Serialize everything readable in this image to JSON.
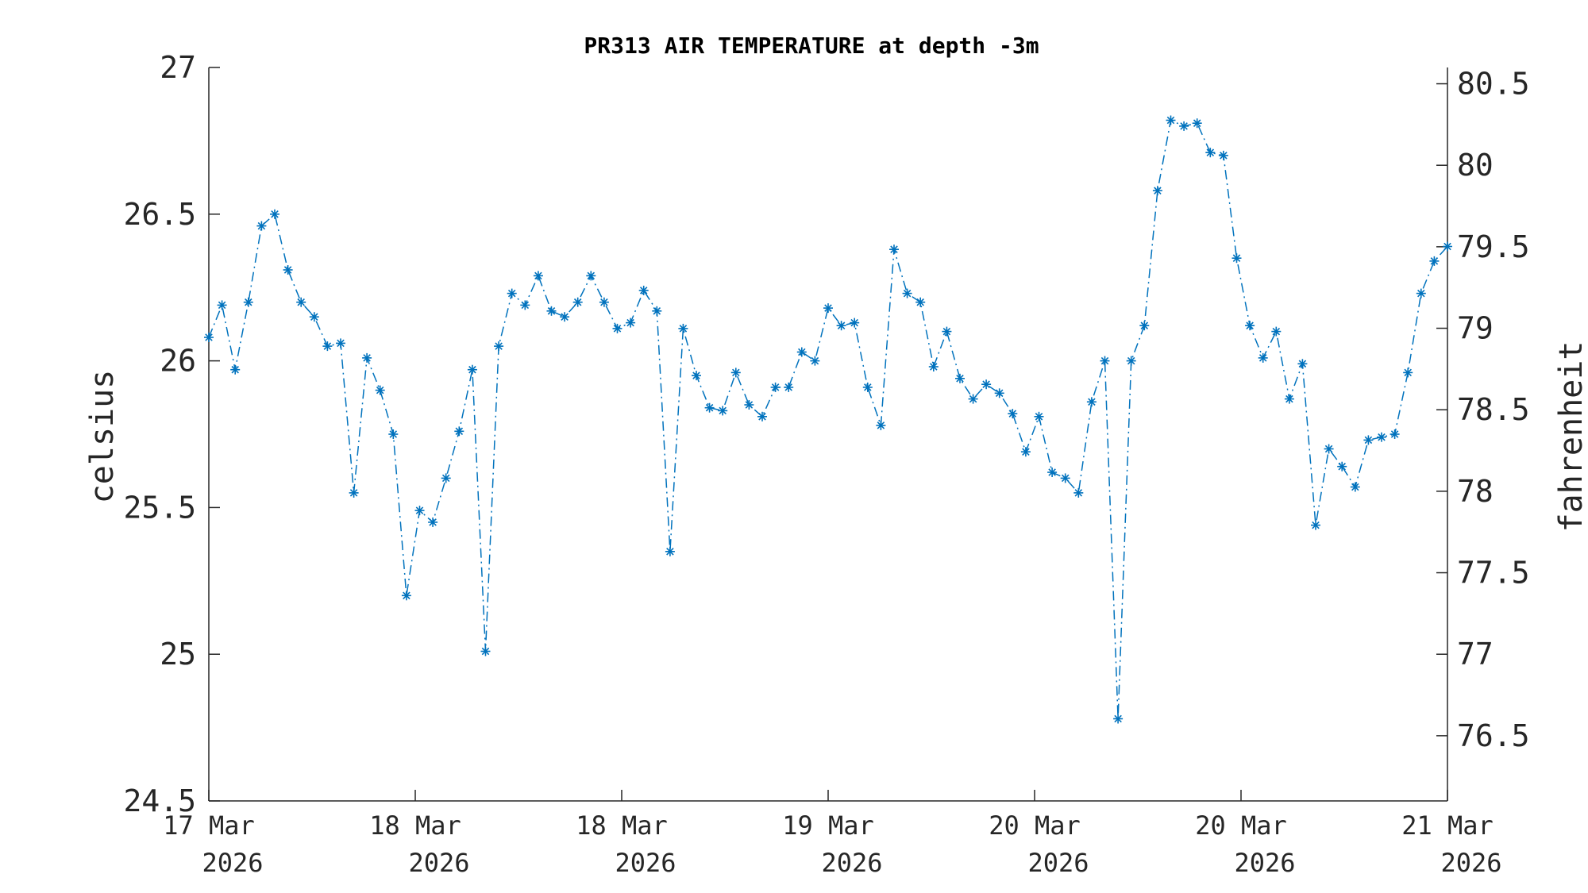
{
  "chart_data": {
    "type": "line",
    "title": "PR313 AIR TEMPERATURE at depth -3m",
    "ylabel": "celsius",
    "y2label": "fahrenheit",
    "ylim": [
      24.5,
      27
    ],
    "yticks": [
      24.5,
      25,
      25.5,
      26,
      26.5,
      27
    ],
    "ytick_labels": [
      "24.5",
      "25",
      "25.5",
      "26",
      "26.5",
      "27"
    ],
    "y2lim": [
      76.1,
      80.6
    ],
    "y2ticks": [
      76.5,
      77,
      77.5,
      78,
      78.5,
      79,
      79.5,
      80,
      80.5
    ],
    "y2tick_labels": [
      "76.5",
      "77",
      "77.5",
      "78",
      "78.5",
      "79",
      "79.5",
      "80",
      "80.5"
    ],
    "xticks": [
      {
        "line1": "17 Mar",
        "line2": "2026"
      },
      {
        "line1": "18 Mar",
        "line2": "2026"
      },
      {
        "line1": "18 Mar",
        "line2": "2026"
      },
      {
        "line1": "19 Mar",
        "line2": "2026"
      },
      {
        "line1": "20 Mar",
        "line2": "2026"
      },
      {
        "line1": "20 Mar",
        "line2": "2026"
      },
      {
        "line1": "21 Mar",
        "line2": "2026"
      }
    ],
    "series": [
      {
        "color": "#0072BD",
        "marker": "asterisk",
        "linestyle": "dash-dot",
        "values": [
          26.08,
          26.19,
          25.97,
          26.2,
          26.46,
          26.5,
          26.31,
          26.2,
          26.15,
          26.05,
          26.06,
          25.55,
          26.01,
          25.9,
          25.75,
          25.2,
          25.49,
          25.45,
          25.6,
          25.76,
          25.97,
          25.01,
          26.05,
          26.23,
          26.19,
          26.29,
          26.17,
          26.15,
          26.2,
          26.29,
          26.2,
          26.11,
          26.13,
          26.24,
          26.17,
          25.35,
          26.11,
          25.95,
          25.84,
          25.83,
          25.96,
          25.85,
          25.81,
          25.91,
          25.91,
          26.03,
          26.0,
          26.18,
          26.12,
          26.13,
          25.91,
          25.78,
          26.38,
          26.23,
          26.2,
          25.98,
          26.1,
          25.94,
          25.87,
          25.92,
          25.89,
          25.82,
          25.69,
          25.81,
          25.62,
          25.6,
          25.55,
          25.86,
          26.0,
          24.78,
          26.0,
          26.12,
          26.58,
          26.82,
          26.8,
          26.81,
          26.71,
          26.7,
          26.35,
          26.12,
          26.01,
          26.1,
          25.87,
          25.99,
          25.44,
          25.7,
          25.64,
          25.57,
          25.73,
          25.74,
          25.75,
          25.96,
          26.23,
          26.34,
          26.39
        ]
      }
    ]
  }
}
